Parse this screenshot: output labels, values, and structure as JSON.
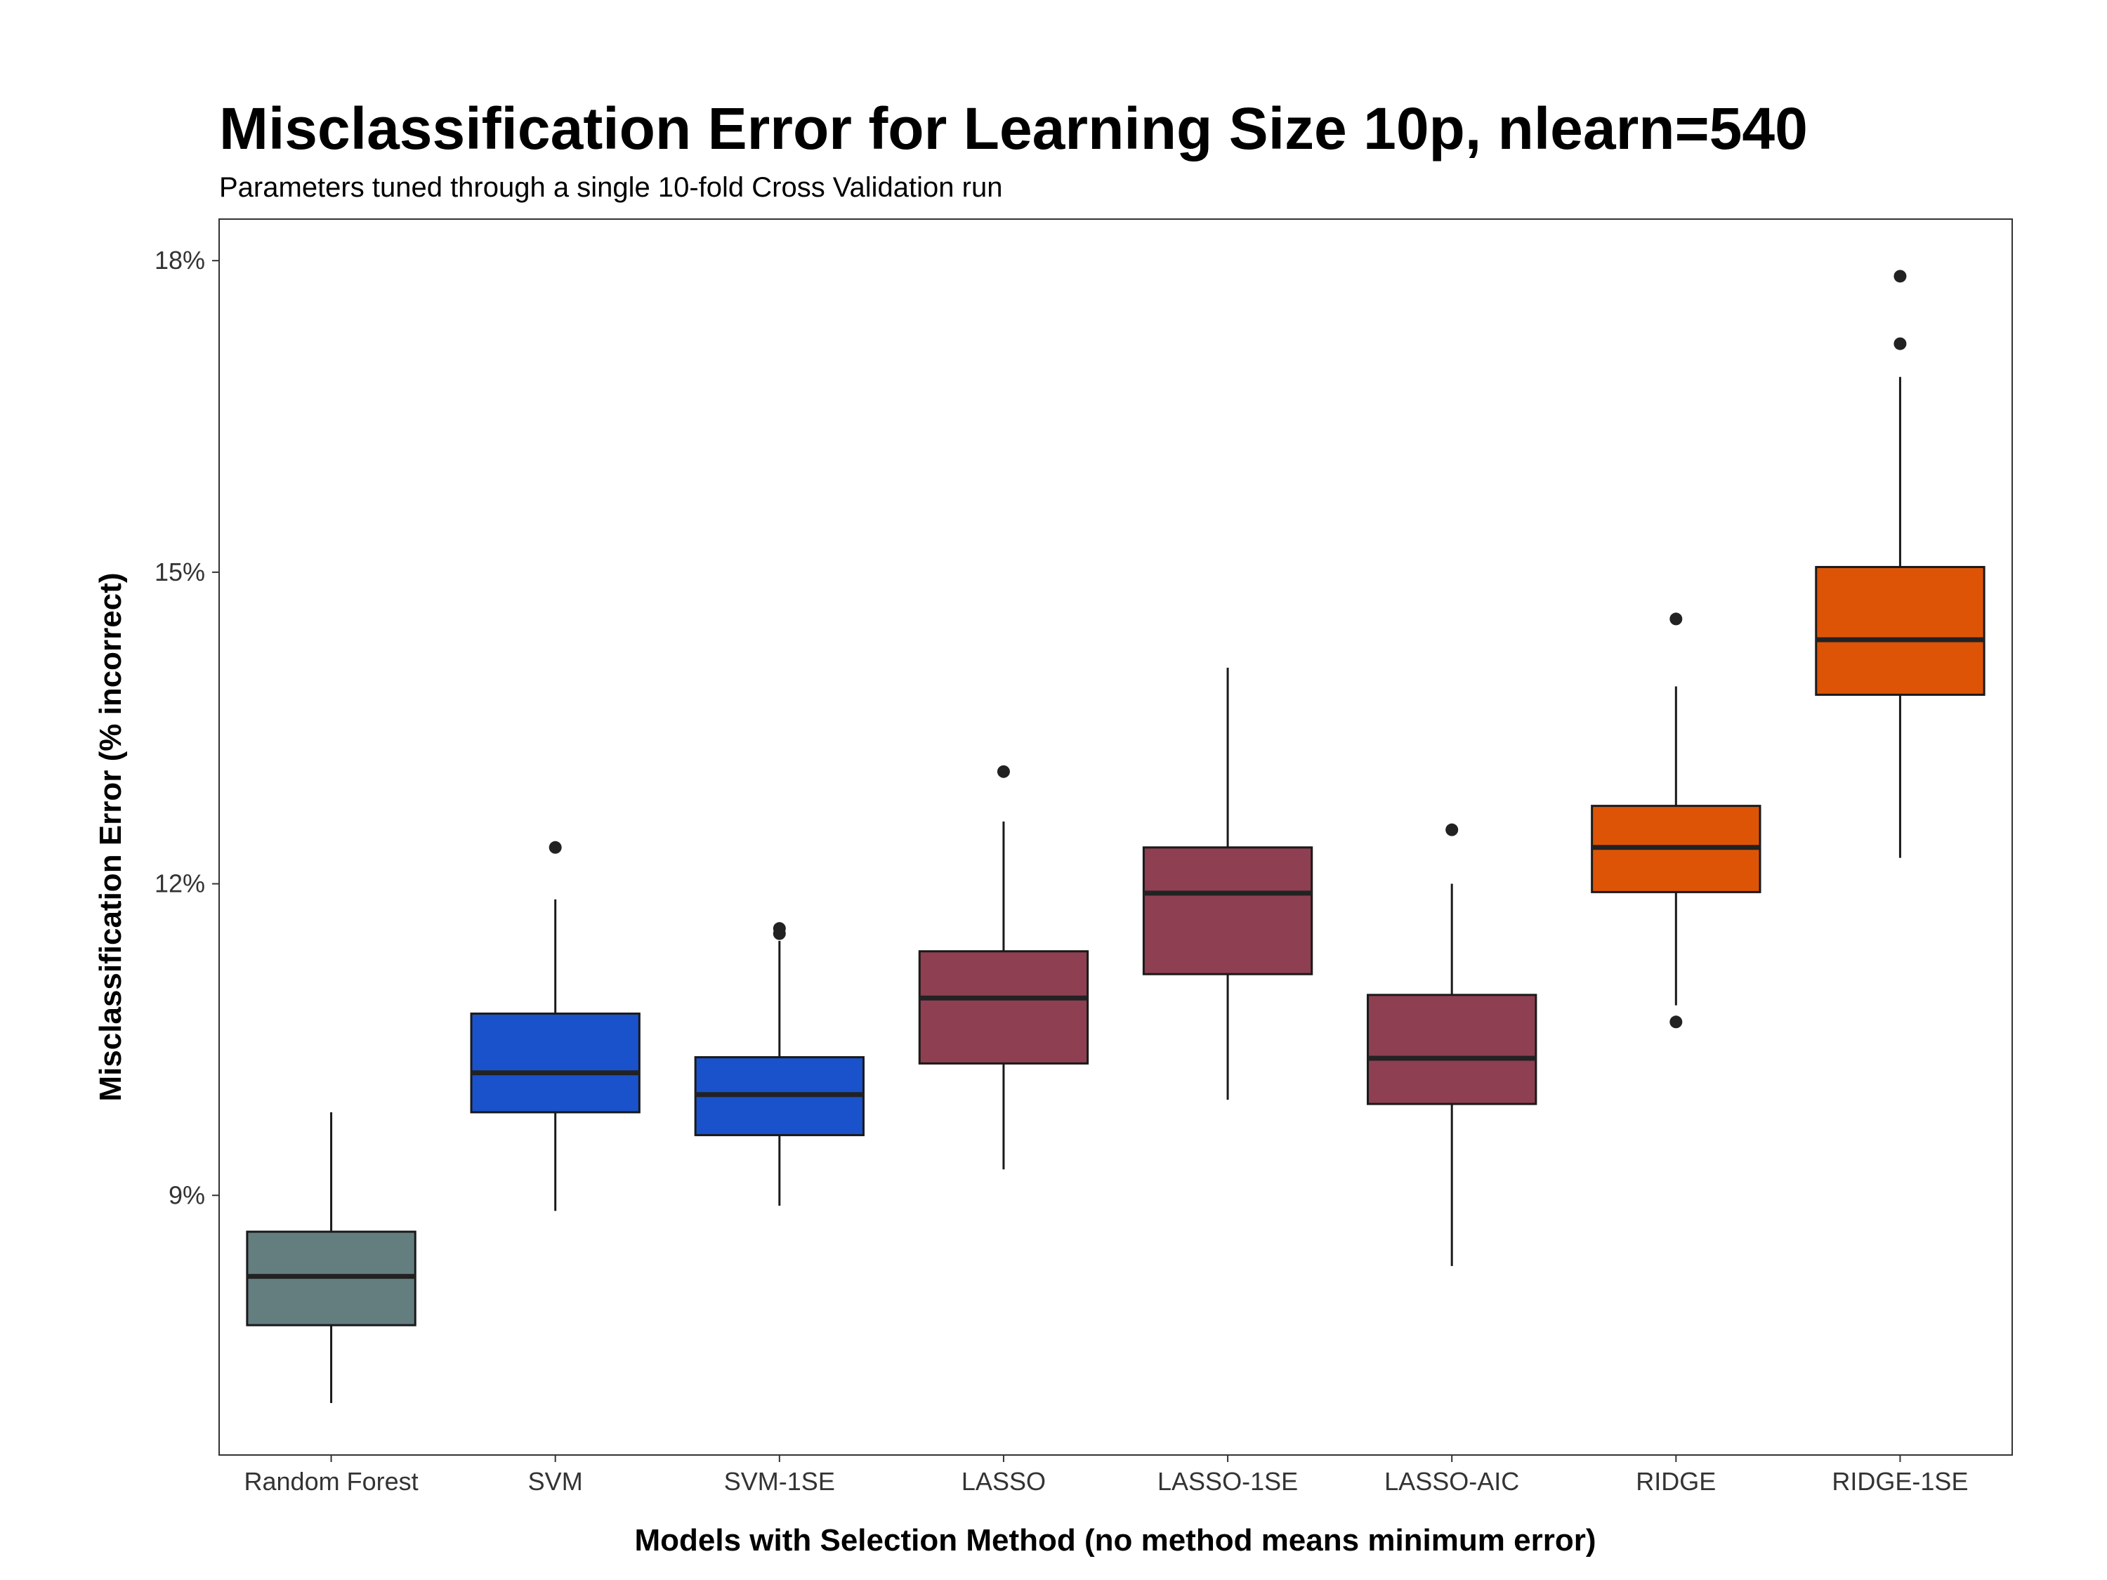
{
  "chart_data": {
    "type": "box",
    "title": "Misclassification Error for Learning Size 10p, nlearn=540",
    "subtitle": "Parameters tuned through a single 10-fold Cross Validation run",
    "xlabel": "Models with Selection Method (no method means minimum error)",
    "ylabel": "Misclassification Error (% incorrect)",
    "y_ticks": [
      {
        "value": 9,
        "label": "9%"
      },
      {
        "value": 12,
        "label": "12%"
      },
      {
        "value": 15,
        "label": "15%"
      },
      {
        "value": 18,
        "label": "18%"
      }
    ],
    "ylim": [
      6.5,
      18.4
    ],
    "grid": false,
    "legend": "none",
    "categories": [
      "Random Forest",
      "SVM",
      "SVM-1SE",
      "LASSO",
      "LASSO-1SE",
      "LASSO-AIC",
      "RIDGE",
      "RIDGE-1SE"
    ],
    "boxes": [
      {
        "category": "Random Forest",
        "whisker_low": 7.0,
        "q1": 7.75,
        "median": 8.22,
        "q3": 8.65,
        "whisker_high": 9.8,
        "outliers": [],
        "color": "#647e80"
      },
      {
        "category": "SVM",
        "whisker_low": 8.85,
        "q1": 9.8,
        "median": 10.18,
        "q3": 10.75,
        "whisker_high": 11.85,
        "outliers": [
          12.35
        ],
        "color": "#1a52cc"
      },
      {
        "category": "SVM-1SE",
        "whisker_low": 8.9,
        "q1": 9.58,
        "median": 9.97,
        "q3": 10.33,
        "whisker_high": 11.45,
        "outliers": [
          11.52,
          11.57
        ],
        "color": "#1a52cc"
      },
      {
        "category": "LASSO",
        "whisker_low": 9.25,
        "q1": 10.27,
        "median": 10.9,
        "q3": 11.35,
        "whisker_high": 12.6,
        "outliers": [
          13.08
        ],
        "color": "#8e3f51"
      },
      {
        "category": "LASSO-1SE",
        "whisker_low": 9.92,
        "q1": 11.13,
        "median": 11.91,
        "q3": 12.35,
        "whisker_high": 14.08,
        "outliers": [],
        "color": "#8e3f51"
      },
      {
        "category": "LASSO-AIC",
        "whisker_low": 8.32,
        "q1": 9.88,
        "median": 10.32,
        "q3": 10.93,
        "whisker_high": 12.0,
        "outliers": [
          12.52
        ],
        "color": "#8e3f51"
      },
      {
        "category": "RIDGE",
        "whisker_low": 10.83,
        "q1": 11.92,
        "median": 12.35,
        "q3": 12.75,
        "whisker_high": 13.9,
        "outliers": [
          14.55,
          10.67
        ],
        "color": "#de5407"
      },
      {
        "category": "RIDGE-1SE",
        "whisker_low": 12.25,
        "q1": 13.82,
        "median": 14.35,
        "q3": 15.05,
        "whisker_high": 16.88,
        "outliers": [
          17.2,
          17.85
        ],
        "color": "#de5407"
      }
    ]
  }
}
